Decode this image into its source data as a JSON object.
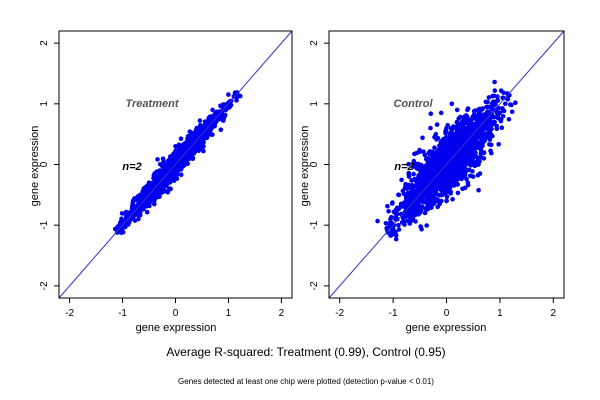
{
  "chart_data": [
    {
      "type": "scatter",
      "title": "Treatment",
      "annotation": "n=2",
      "xlabel": "gene expression",
      "ylabel": "gene expression",
      "xlim": [
        -2.2,
        2.2
      ],
      "ylim": [
        -2.2,
        2.2
      ],
      "xticks": [
        -2,
        -1,
        0,
        1,
        2
      ],
      "yticks": [
        -2,
        -1,
        0,
        1,
        2
      ],
      "grid": false,
      "reference_line": {
        "slope": 1,
        "intercept": 0,
        "color": "#3333cc"
      },
      "point_color": "#0000ee",
      "r_squared": 0.99,
      "points": [
        [
          -1.1,
          -1.12
        ],
        [
          -1.05,
          -1.02
        ],
        [
          -1.0,
          -0.95
        ],
        [
          -0.95,
          -0.98
        ],
        [
          -0.9,
          -0.85
        ],
        [
          -0.85,
          -0.9
        ],
        [
          -0.8,
          -0.75
        ],
        [
          -0.75,
          -0.8
        ],
        [
          -0.7,
          -0.68
        ],
        [
          -0.65,
          -0.7
        ],
        [
          -0.6,
          -0.55
        ],
        [
          -0.55,
          -0.6
        ],
        [
          -0.5,
          -0.45
        ],
        [
          -0.45,
          -0.5
        ],
        [
          -0.4,
          -0.35
        ],
        [
          -0.35,
          -0.42
        ],
        [
          -0.3,
          -0.25
        ],
        [
          -0.25,
          -0.3
        ],
        [
          -0.2,
          -0.15
        ],
        [
          -0.15,
          -0.2
        ],
        [
          -0.1,
          -0.05
        ],
        [
          -0.05,
          -0.12
        ],
        [
          0.0,
          0.05
        ],
        [
          0.05,
          -0.02
        ],
        [
          0.1,
          0.15
        ],
        [
          0.15,
          0.08
        ],
        [
          0.2,
          0.25
        ],
        [
          0.25,
          0.18
        ],
        [
          0.3,
          0.35
        ],
        [
          0.35,
          0.28
        ],
        [
          0.4,
          0.45
        ],
        [
          0.45,
          0.38
        ],
        [
          0.5,
          0.55
        ],
        [
          0.55,
          0.48
        ],
        [
          0.6,
          0.65
        ],
        [
          0.65,
          0.58
        ],
        [
          0.7,
          0.75
        ],
        [
          0.75,
          0.68
        ],
        [
          0.8,
          0.85
        ],
        [
          0.85,
          0.8
        ],
        [
          0.9,
          0.95
        ],
        [
          0.95,
          0.9
        ],
        [
          1.0,
          1.02
        ],
        [
          1.05,
          0.98
        ],
        [
          1.1,
          1.12
        ],
        [
          1.15,
          1.15
        ],
        [
          -0.6,
          -0.4
        ],
        [
          -0.4,
          -0.6
        ],
        [
          -0.2,
          0.0
        ],
        [
          0.0,
          -0.2
        ],
        [
          0.3,
          0.5
        ],
        [
          0.5,
          0.3
        ],
        [
          -0.8,
          -0.6
        ],
        [
          0.7,
          0.9
        ],
        [
          -0.3,
          -0.1
        ],
        [
          0.2,
          0.05
        ],
        [
          0.0,
          0.3
        ],
        [
          -0.5,
          -0.3
        ],
        [
          0.4,
          0.6
        ],
        [
          -0.7,
          -0.9
        ]
      ]
    },
    {
      "type": "scatter",
      "title": "Control",
      "annotation": "n=2",
      "xlabel": "gene expression",
      "ylabel": "gene expression",
      "xlim": [
        -2.2,
        2.2
      ],
      "ylim": [
        -2.2,
        2.2
      ],
      "xticks": [
        -2,
        -1,
        0,
        1,
        2
      ],
      "yticks": [
        -2,
        -1,
        0,
        1,
        2
      ],
      "grid": false,
      "reference_line": {
        "slope": 1,
        "intercept": 0,
        "color": "#3333cc"
      },
      "point_color": "#0000ee",
      "r_squared": 0.95,
      "points": [
        [
          -1.1,
          -1.12
        ],
        [
          -1.05,
          -0.9
        ],
        [
          -1.0,
          -1.05
        ],
        [
          -0.95,
          -0.75
        ],
        [
          -0.9,
          -1.0
        ],
        [
          -0.85,
          -0.65
        ],
        [
          -0.8,
          -0.95
        ],
        [
          -0.75,
          -0.5
        ],
        [
          -0.7,
          -0.85
        ],
        [
          -0.65,
          -0.4
        ],
        [
          -0.6,
          -0.8
        ],
        [
          -0.55,
          -0.3
        ],
        [
          -0.5,
          -0.7
        ],
        [
          -0.45,
          -0.2
        ],
        [
          -0.4,
          -0.6
        ],
        [
          -0.35,
          -0.1
        ],
        [
          -0.3,
          -0.5
        ],
        [
          -0.25,
          0.0
        ],
        [
          -0.2,
          -0.45
        ],
        [
          -0.15,
          0.1
        ],
        [
          -0.1,
          -0.35
        ],
        [
          -0.05,
          0.2
        ],
        [
          0.0,
          -0.25
        ],
        [
          0.05,
          0.3
        ],
        [
          0.1,
          -0.15
        ],
        [
          0.15,
          0.4
        ],
        [
          0.2,
          -0.05
        ],
        [
          0.25,
          0.5
        ],
        [
          0.3,
          0.05
        ],
        [
          0.35,
          0.6
        ],
        [
          0.4,
          0.15
        ],
        [
          0.45,
          0.7
        ],
        [
          0.5,
          0.25
        ],
        [
          0.55,
          0.8
        ],
        [
          0.6,
          0.35
        ],
        [
          0.65,
          0.9
        ],
        [
          0.7,
          0.45
        ],
        [
          0.75,
          0.95
        ],
        [
          0.8,
          0.55
        ],
        [
          0.85,
          1.0
        ],
        [
          0.9,
          0.7
        ],
        [
          0.95,
          1.05
        ],
        [
          1.0,
          0.85
        ],
        [
          1.05,
          1.1
        ],
        [
          1.1,
          1.0
        ],
        [
          1.15,
          1.15
        ],
        [
          -0.3,
          0.6
        ],
        [
          -0.1,
          0.85
        ],
        [
          0.1,
          1.0
        ],
        [
          0.3,
          -0.4
        ],
        [
          0.5,
          -0.2
        ],
        [
          -0.7,
          -0.2
        ],
        [
          -0.6,
          0.0
        ],
        [
          0.7,
          0.1
        ],
        [
          -0.9,
          -0.5
        ],
        [
          0.2,
          0.9
        ],
        [
          -0.2,
          0.5
        ],
        [
          0.4,
          -0.3
        ],
        [
          0.6,
          0.0
        ],
        [
          -0.4,
          -0.8
        ],
        [
          0.0,
          0.6
        ],
        [
          0.0,
          -0.6
        ]
      ]
    }
  ],
  "caption": "Average R-squared: Treatment (0.99), Control (0.95)",
  "footnote": "Genes detected at least one chip were plotted (detection p-value < 0.01)"
}
